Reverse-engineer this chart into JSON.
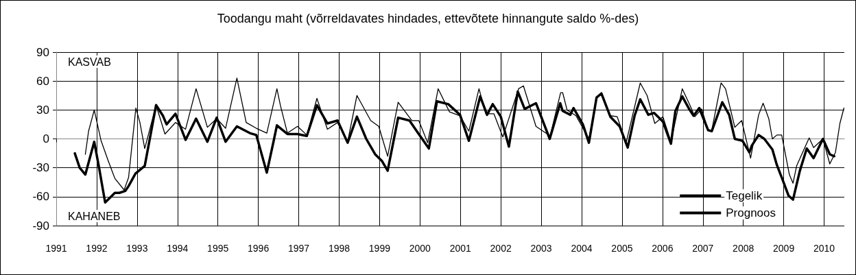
{
  "chart_data": {
    "type": "line",
    "title": "Toodangu maht (võrreldavates hindades, ettevõtete hinnangute saldo %-des)",
    "xlim": [
      1991,
      2010.5
    ],
    "xticks": [
      1991,
      1992,
      1993,
      1994,
      1995,
      1996,
      1997,
      1998,
      1999,
      2000,
      2001,
      2002,
      2003,
      2004,
      2005,
      2006,
      2007,
      2008,
      2009,
      2010
    ],
    "ylim": [
      -90,
      90
    ],
    "yticks": [
      -90,
      -60,
      -30,
      0,
      30,
      60,
      90
    ],
    "grid": true,
    "legend": "bottom right",
    "marker": "none",
    "line_style": "solid",
    "annotations": [
      "KASVAB",
      "KAHANEB"
    ],
    "series": [
      {
        "name": "Tegelik",
        "color": "#000000",
        "x": [
          1991.46,
          1991.58,
          1991.72,
          1991.94,
          1992.06,
          1992.21,
          1992.45,
          1992.56,
          1992.71,
          1992.79,
          1992.96,
          1993.19,
          1993.47,
          1993.64,
          1993.73,
          1993.95,
          1994.2,
          1994.46,
          1994.74,
          1994.97,
          1995.19,
          1995.47,
          1995.79,
          1995.95,
          1996.21,
          1996.38,
          1996.46,
          1996.72,
          1996.97,
          1997.2,
          1997.45,
          1997.71,
          1997.96,
          1998.21,
          1998.44,
          1998.67,
          1998.89,
          1999.06,
          1999.2,
          1999.46,
          1999.74,
          1999.97,
          2000.22,
          2000.42,
          2000.7,
          2000.99,
          2001.21,
          2001.49,
          2001.66,
          2001.8,
          2002.0,
          2002.2,
          2002.42,
          2002.59,
          2002.87,
          2003.21,
          2003.47,
          2003.53,
          2003.72,
          2003.8,
          2004.03,
          2004.18,
          2004.37,
          2004.49,
          2004.71,
          2004.94,
          2005.14,
          2005.31,
          2005.45,
          2005.65,
          2005.79,
          2006.01,
          2006.21,
          2006.32,
          2006.49,
          2006.66,
          2006.77,
          2006.91,
          2007.13,
          2007.22,
          2007.48,
          2007.65,
          2007.79,
          2007.98,
          2008.15,
          2008.21,
          2008.38,
          2008.52,
          2008.72,
          2008.83,
          2008.95,
          2009.12,
          2009.23,
          2009.4,
          2009.57,
          2009.74,
          2009.97,
          2010.14,
          2010.25
        ],
        "values": [
          -15,
          -30,
          -37,
          -3,
          -30,
          -66,
          -56,
          -56,
          -54,
          -49,
          -36,
          -28,
          35,
          24,
          15,
          26,
          -1,
          21,
          -3,
          22,
          -3,
          13,
          6,
          4,
          -35,
          -2,
          14,
          5,
          5,
          3,
          35,
          16,
          19,
          -4,
          23,
          0,
          -16,
          -23,
          -33,
          22,
          19,
          5,
          -10,
          39,
          36,
          25,
          -2,
          44,
          25,
          36,
          23,
          -8,
          49,
          31,
          37,
          0,
          37,
          29,
          25,
          32,
          15,
          -4,
          43,
          47,
          23,
          13,
          -9,
          24,
          41,
          25,
          27,
          18,
          -5,
          29,
          44,
          31,
          24,
          32,
          9,
          8,
          38,
          25,
          0,
          -2,
          -14,
          -7,
          4,
          0,
          -11,
          -27,
          -40,
          -59,
          -63,
          -33,
          -10,
          -20,
          0,
          -16,
          -18
        ]
      },
      {
        "name": "Prognoos",
        "color": "#000000",
        "x": [
          1991.72,
          1991.8,
          1991.94,
          1992.11,
          1992.28,
          1992.45,
          1992.68,
          1992.79,
          1992.97,
          1993.07,
          1993.19,
          1993.47,
          1993.69,
          1993.95,
          1994.2,
          1994.46,
          1994.74,
          1994.97,
          1995.19,
          1995.47,
          1995.7,
          1995.95,
          1996.21,
          1996.46,
          1996.55,
          1996.72,
          1996.97,
          1997.2,
          1997.45,
          1997.71,
          1997.96,
          1998.21,
          1998.44,
          1998.78,
          1998.98,
          1999.2,
          1999.46,
          1999.8,
          1999.97,
          2000.19,
          2000.45,
          2000.73,
          2000.99,
          2001.21,
          2001.46,
          2001.63,
          2001.83,
          2002.05,
          2002.44,
          2002.56,
          2002.87,
          2003.22,
          2003.48,
          2003.53,
          2003.64,
          2003.86,
          2004.18,
          2004.37,
          2004.49,
          2004.71,
          2004.88,
          2005.1,
          2005.45,
          2005.62,
          2005.81,
          2006.01,
          2006.21,
          2006.49,
          2006.69,
          2006.8,
          2006.97,
          2007.13,
          2007.22,
          2007.45,
          2007.56,
          2007.79,
          2007.96,
          2008.18,
          2008.38,
          2008.49,
          2008.63,
          2008.72,
          2008.83,
          2008.95,
          2009.14,
          2009.23,
          2009.32,
          2009.63,
          2009.74,
          2009.97,
          2010.14,
          2010.28,
          2010.39,
          2010.49
        ],
        "values": [
          -16,
          8,
          30,
          -2,
          -22,
          -41,
          -53,
          -40,
          32,
          17,
          -10,
          35,
          5,
          17,
          10,
          52,
          12,
          21,
          11,
          63,
          17,
          11,
          6,
          52,
          34,
          6,
          13,
          4,
          42,
          10,
          17,
          -3,
          45,
          19,
          13,
          -18,
          38,
          19,
          19,
          -4,
          52,
          28,
          24,
          8,
          52,
          26,
          26,
          2,
          52,
          55,
          13,
          3,
          48,
          48,
          30,
          24,
          0,
          42,
          48,
          24,
          23,
          -4,
          58,
          45,
          16,
          23,
          -3,
          52,
          34,
          23,
          31,
          9,
          9,
          58,
          52,
          12,
          19,
          -20,
          25,
          37,
          21,
          0,
          4,
          4,
          -37,
          -46,
          -28,
          1,
          -9,
          0,
          -26,
          -14,
          16,
          32
        ]
      }
    ]
  }
}
